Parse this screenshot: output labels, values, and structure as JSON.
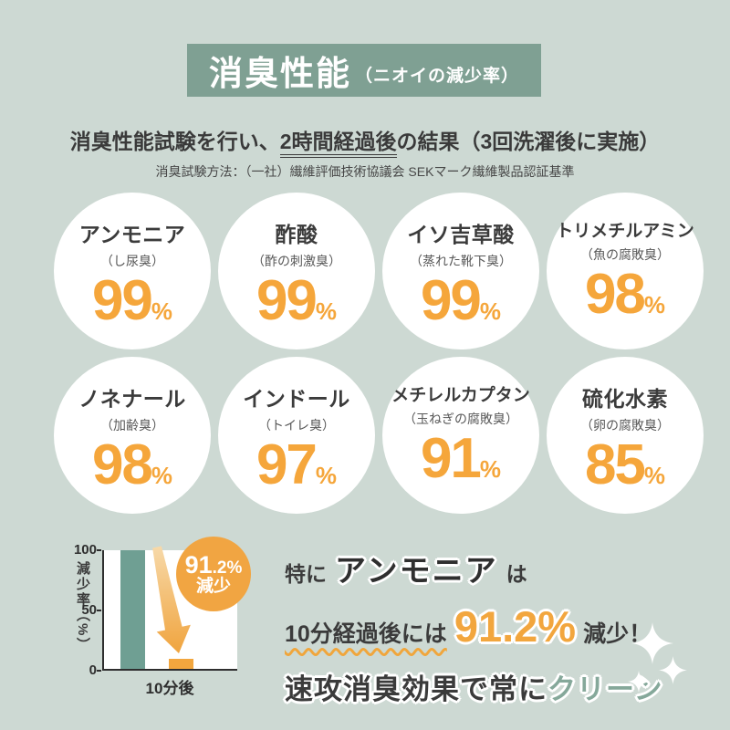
{
  "header": {
    "title": "消臭性能",
    "subtitle": "（ニオイの減少率）"
  },
  "intro": {
    "line1_pre": "消臭性能試験を行い、",
    "line1_underline": "2時間経過後",
    "line1_post": "の結果（3回洗濯後に実施）",
    "method": "消臭試験方法：（一社）繊維評価技術協議会 SEKマーク繊維製品認証基準"
  },
  "odors": [
    {
      "name": "アンモニア",
      "desc": "（し尿臭）",
      "value": "99",
      "unit": "%"
    },
    {
      "name": "酢酸",
      "desc": "（酢の刺激臭）",
      "value": "99",
      "unit": "%"
    },
    {
      "name": "イソ吉草酸",
      "desc": "（蒸れた靴下臭）",
      "value": "99",
      "unit": "%"
    },
    {
      "name": "トリメチルアミン",
      "desc": "（魚の腐敗臭）",
      "value": "98",
      "unit": "%"
    },
    {
      "name": "ノネナール",
      "desc": "（加齢臭）",
      "value": "98",
      "unit": "%"
    },
    {
      "name": "インドール",
      "desc": "（トイレ臭）",
      "value": "97",
      "unit": "%"
    },
    {
      "name": "メチレルカプタン",
      "desc": "（玉ねぎの腐敗臭）",
      "value": "91",
      "unit": "%"
    },
    {
      "name": "硫化水素",
      "desc": "（卵の腐敗臭）",
      "value": "85",
      "unit": "%"
    }
  ],
  "chart_data": [
    {
      "type": "bar",
      "title": "",
      "categories": [
        "",
        "10分後"
      ],
      "values": [
        100,
        8.8
      ],
      "series_colors": [
        "#6f9f93",
        "#f2a63e"
      ],
      "xlabel": "10分後",
      "ylabel": "減少率（%）",
      "yticks": [
        "0",
        "50",
        "100"
      ],
      "ylim": [
        0,
        100
      ],
      "grid": false,
      "legend": false,
      "annotation": "91.2% 減少"
    },
    {
      "type": "table",
      "title": "消臭性能（ニオイの減少率） 2時間経過後の結果（3回洗濯後に実施）",
      "columns": [
        "substance",
        "odor_example",
        "reduction_percent"
      ],
      "rows": [
        [
          "アンモニア",
          "し尿臭",
          99
        ],
        [
          "酢酸",
          "酢の刺激臭",
          99
        ],
        [
          "イソ吉草酸",
          "蒸れた靴下臭",
          99
        ],
        [
          "トリメチルアミン",
          "魚の腐敗臭",
          98
        ],
        [
          "ノネナール",
          "加齢臭",
          98
        ],
        [
          "インドール",
          "トイレ臭",
          97
        ],
        [
          "メチレルカプタン",
          "玉ねぎの腐敗臭",
          91
        ],
        [
          "硫化水素",
          "卵の腐敗臭",
          85
        ]
      ]
    }
  ],
  "chart_badge": {
    "value_big": "91",
    "value_small": ".2%",
    "label": "減少"
  },
  "highlight": {
    "line1_pre": "特に",
    "line1_em": "アンモニア",
    "line1_post": "は",
    "line2_lead": "10分経過後には",
    "line2_value": "91.2%",
    "line2_tail": "減少！",
    "line3_main": "速攻消臭効果で常に",
    "line3_accent": "クリーン"
  },
  "colors": {
    "background": "#cdd9d3",
    "header_bg": "#7fa093",
    "accent_orange": "#f2a63e",
    "number_orange": "#f5a63b",
    "bar_teal": "#6f9f93",
    "text_dark": "#3b3b3b",
    "accent_green_text": "#85a89a",
    "circle_bg": "#ffffff"
  }
}
